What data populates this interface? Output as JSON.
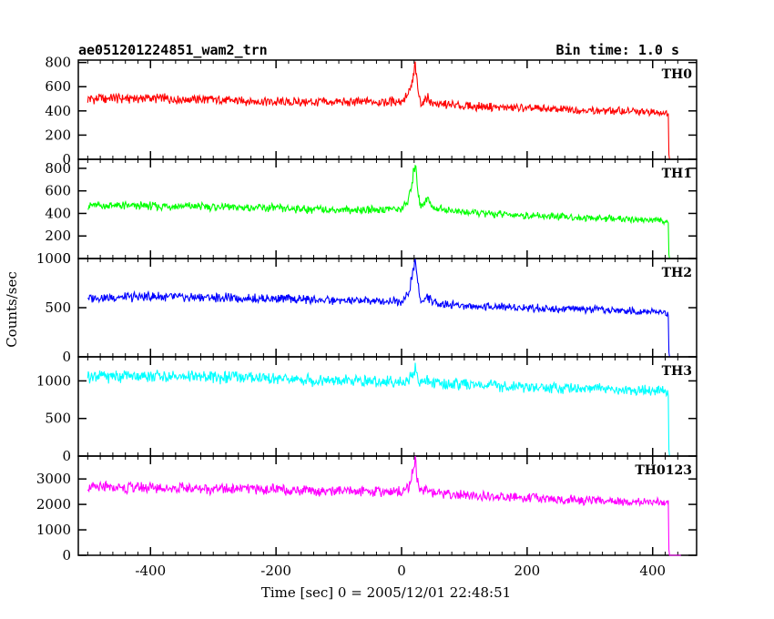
{
  "header": {
    "title": "ae051201224851_wam2_trn",
    "bin_time": "Bin time: 1.0 s"
  },
  "chart_data": {
    "type": "line",
    "xlabel": "Time [sec] 0 = 2005/12/01 22:48:51",
    "ylabel": "Counts/sec",
    "xlim": [
      -515,
      470
    ],
    "x_ticks": [
      -400,
      -200,
      0,
      200,
      400
    ],
    "grid": false,
    "panels": [
      {
        "name": "TH0",
        "color": "#ff0000",
        "ylim": [
          0,
          820
        ],
        "y_ticks": [
          0,
          200,
          400,
          600,
          800
        ],
        "x": [
          -500,
          -400,
          -300,
          -200,
          -100,
          0,
          10,
          15,
          20,
          22,
          25,
          30,
          35,
          40,
          50,
          100,
          200,
          300,
          400,
          425,
          426,
          445
        ],
        "y": [
          500,
          505,
          490,
          475,
          470,
          480,
          530,
          590,
          700,
          800,
          600,
          480,
          470,
          520,
          460,
          440,
          420,
          405,
          390,
          380,
          0,
          0
        ]
      },
      {
        "name": "TH1",
        "color": "#00ff00",
        "ylim": [
          0,
          880
        ],
        "y_ticks": [
          0,
          200,
          400,
          600,
          800
        ],
        "x": [
          -500,
          -400,
          -300,
          -200,
          -100,
          0,
          10,
          15,
          20,
          22,
          25,
          30,
          35,
          40,
          50,
          100,
          200,
          300,
          400,
          425,
          426,
          445
        ],
        "y": [
          470,
          465,
          460,
          445,
          430,
          440,
          500,
          620,
          780,
          900,
          650,
          470,
          480,
          540,
          450,
          410,
          380,
          360,
          340,
          330,
          0,
          0
        ]
      },
      {
        "name": "TH2",
        "color": "#0000ff",
        "ylim": [
          0,
          1000
        ],
        "y_ticks": [
          0,
          500,
          1000
        ],
        "x": [
          -500,
          -400,
          -300,
          -200,
          -100,
          0,
          10,
          15,
          20,
          22,
          25,
          30,
          35,
          40,
          50,
          100,
          200,
          300,
          400,
          425,
          426,
          445
        ],
        "y": [
          600,
          610,
          600,
          590,
          570,
          570,
          620,
          750,
          920,
          1000,
          780,
          580,
          560,
          620,
          550,
          520,
          500,
          480,
          460,
          440,
          0,
          0
        ]
      },
      {
        "name": "TH3",
        "color": "#00ffff",
        "ylim": [
          0,
          1320
        ],
        "y_ticks": [
          0,
          500,
          1000
        ],
        "x": [
          -500,
          -400,
          -300,
          -200,
          -100,
          0,
          10,
          15,
          20,
          22,
          25,
          30,
          35,
          40,
          50,
          100,
          200,
          300,
          400,
          425,
          426,
          445
        ],
        "y": [
          1060,
          1070,
          1050,
          1030,
          1000,
          990,
          1000,
          1050,
          1120,
          1200,
          1080,
          990,
          980,
          1020,
          970,
          950,
          920,
          900,
          870,
          860,
          0,
          0
        ]
      },
      {
        "name": "TH0123",
        "color": "#ff00ff",
        "ylim": [
          0,
          3900
        ],
        "y_ticks": [
          0,
          1000,
          2000,
          3000
        ],
        "x": [
          -500,
          -400,
          -300,
          -200,
          -100,
          0,
          10,
          15,
          20,
          22,
          25,
          30,
          35,
          40,
          50,
          100,
          200,
          300,
          400,
          425,
          426,
          445
        ],
        "y": [
          2650,
          2650,
          2630,
          2580,
          2520,
          2520,
          2650,
          3000,
          3500,
          3850,
          3000,
          2500,
          2480,
          2700,
          2450,
          2350,
          2250,
          2150,
          2070,
          2050,
          0,
          0
        ]
      }
    ]
  }
}
